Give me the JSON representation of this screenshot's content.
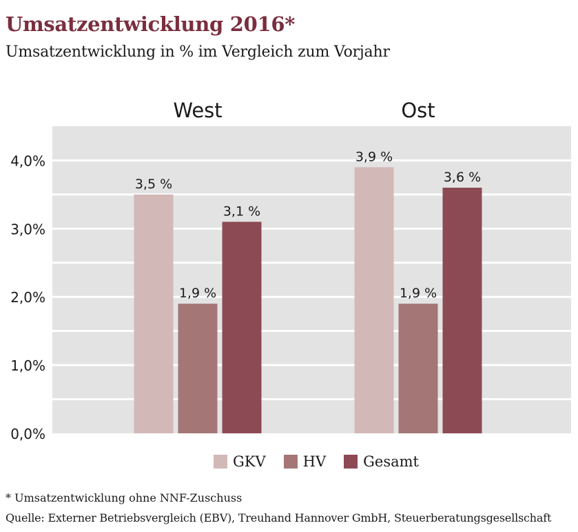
{
  "title": "Umsatzentwicklung 2016*",
  "subtitle": "Umsatzentwicklung in % im Vergleich zum Vorjahr",
  "footnote": "* Umsatzentwicklung ohne NNF-Zuschuss",
  "source": "Quelle: Externer Betriebsvergleich (EBV), Treuhand Hannover GmbH, Steuerberatungsgesellschaft",
  "chart_data": {
    "type": "bar",
    "title": "Umsatzentwicklung 2016*",
    "subtitle": "Umsatzentwicklung in % im Vergleich zum Vorjahr",
    "categories": [
      "West",
      "Ost"
    ],
    "series": [
      {
        "name": "GKV",
        "values": [
          3.5,
          3.9
        ],
        "labels": [
          "3,5 %",
          "3,9 %"
        ],
        "color": "#d3b8b8"
      },
      {
        "name": "HV",
        "values": [
          1.9,
          1.9
        ],
        "labels": [
          "1,9 %",
          "1,9 %"
        ],
        "color": "#a57676"
      },
      {
        "name": "Gesamt",
        "values": [
          3.1,
          3.6
        ],
        "labels": [
          "3,1 %",
          "3,6 %"
        ],
        "color": "#8c4a55"
      }
    ],
    "ylim": [
      0,
      4.5
    ],
    "yticks": [
      0,
      1,
      2,
      3,
      4
    ],
    "ytick_labels": [
      "0,0%",
      "1,0%",
      "2,0%",
      "3,0%",
      "4,0%"
    ],
    "grid": true,
    "legend_position": "bottom",
    "colors": {
      "plot_background": "#e3e3e3",
      "grid": "#ffffff",
      "title": "#7a2e3e"
    }
  }
}
